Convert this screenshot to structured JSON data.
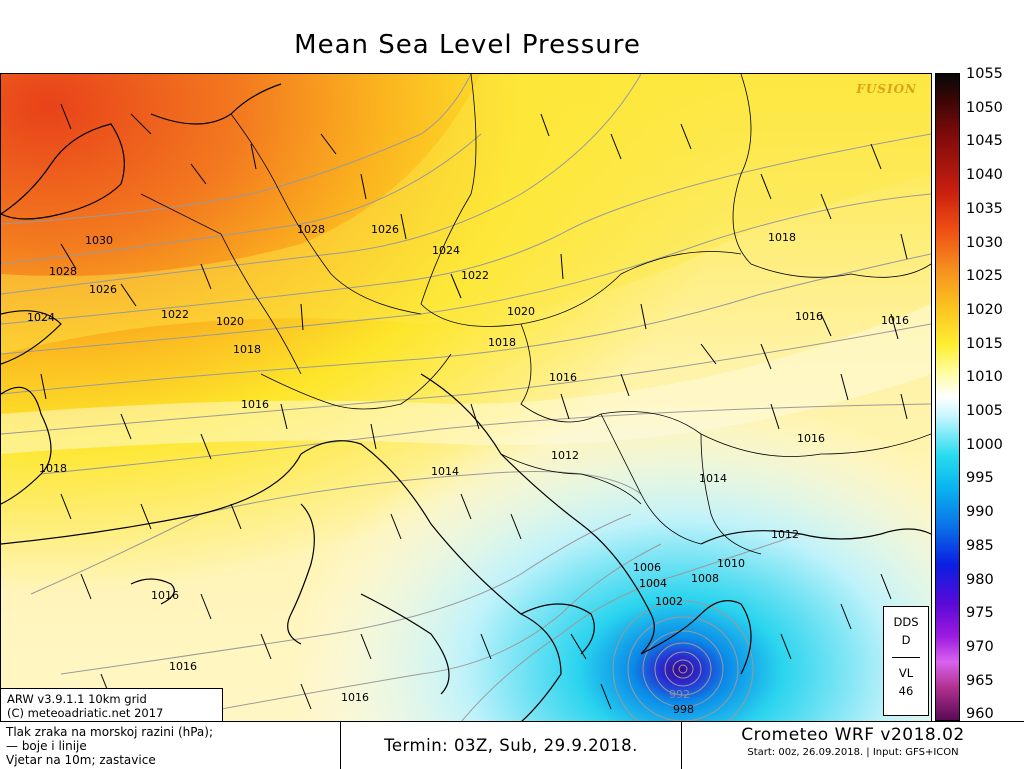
{
  "title": "Mean Sea Level Pressure",
  "watermark": "FUSION",
  "model_info": {
    "line1": "ARW v3.9.1.1 10km grid",
    "line2": "(C) meteoadriatic.net 2017"
  },
  "dds_box": {
    "line1": "DDS",
    "line2": "D",
    "line3": "VL",
    "line4": "46"
  },
  "colorbar": {
    "unit": "hPa",
    "labels": [
      "1055",
      "1050",
      "1045",
      "1040",
      "1035",
      "1030",
      "1025",
      "1020",
      "1015",
      "1010",
      "1005",
      "1000",
      "995",
      "990",
      "985",
      "980",
      "975",
      "970",
      "965",
      "960"
    ]
  },
  "footer": {
    "left_line1": "Tlak zraka na morskoj razini (hPa);",
    "left_line2": "— boje i linije",
    "left_line3": "Vjetar na 10m; zastavice",
    "termin": "Termin: 03Z, Sub, 29.9.2018.",
    "brand": "Crometeo WRF v2018.02",
    "start_info": "Start: 00z, 26.09.2018. | Input: GFS+ICON"
  },
  "isobar_labels": [
    "1030",
    "1028",
    "1026",
    "1024",
    "1028",
    "1026",
    "1024",
    "1022",
    "1020",
    "1018",
    "1020",
    "1022",
    "1018",
    "1016",
    "1016",
    "1016",
    "1016",
    "1018",
    "1018",
    "1016",
    "1016",
    "1016",
    "1014",
    "1012",
    "1014",
    "1012",
    "1010",
    "1008",
    "1006",
    "1004",
    "1002",
    "998",
    "992"
  ],
  "colors": {
    "high_pressure": "#e8481a",
    "mid_pressure": "#fbd61f",
    "neutral": "#fff9d6",
    "low_pressure": "#2ad4ee",
    "cyclone_core": "#3a0a8a"
  }
}
